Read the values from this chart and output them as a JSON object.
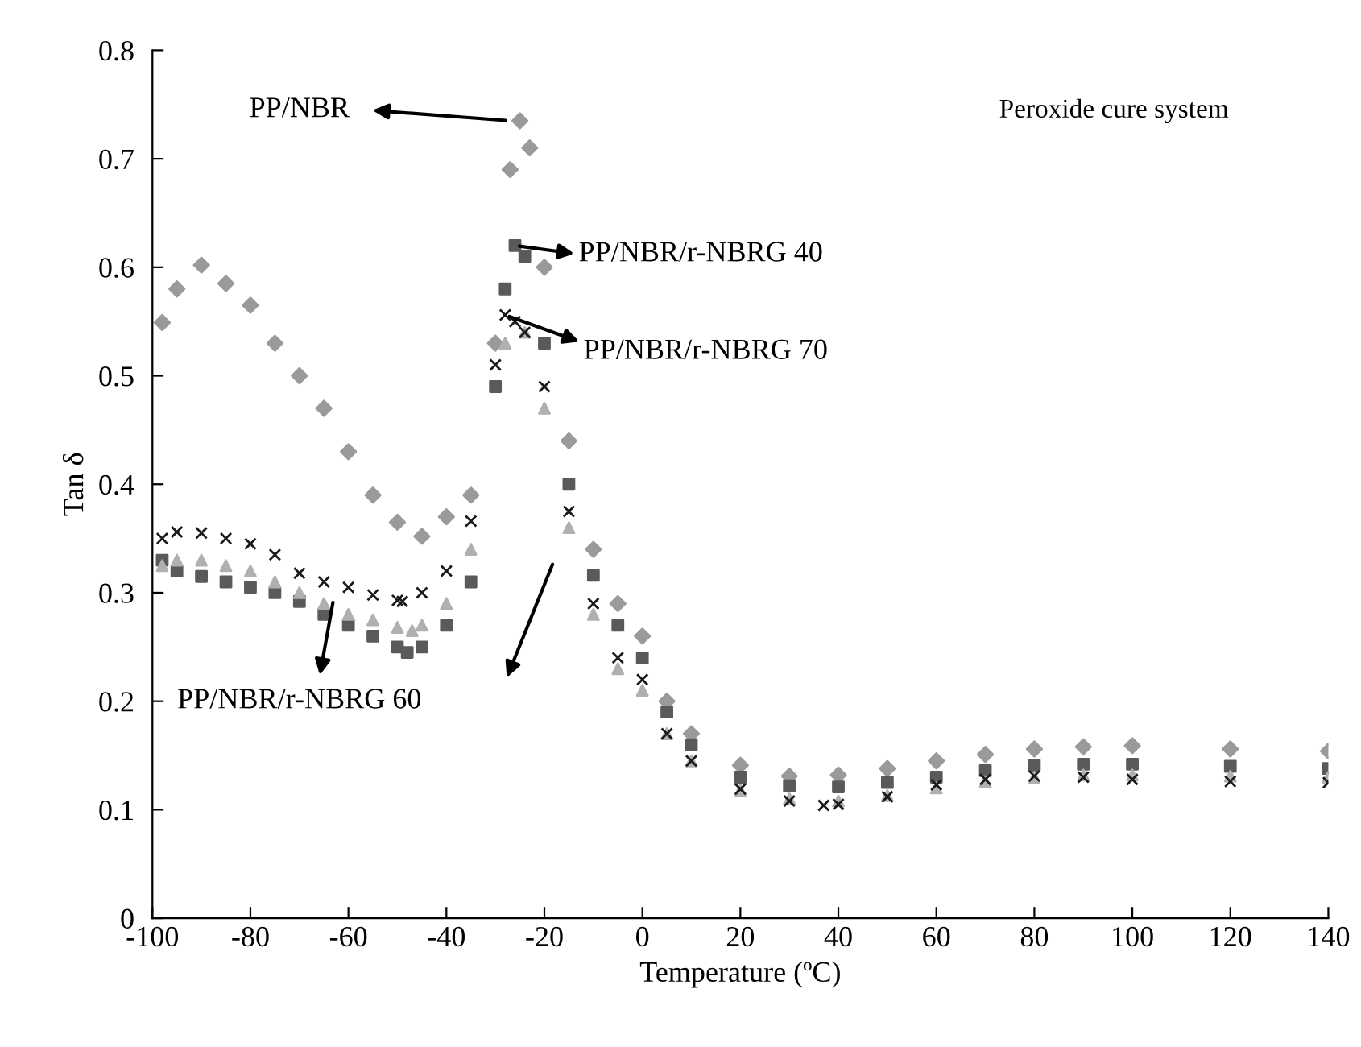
{
  "chart_data": {
    "type": "scatter",
    "xlabel": "Temperature (ºC)",
    "ylabel": "Tan δ",
    "xlim": [
      -100,
      140
    ],
    "xticks": [
      -100,
      -80,
      -60,
      -40,
      -20,
      0,
      20,
      40,
      60,
      80,
      100,
      120,
      140
    ],
    "ylim": [
      0,
      0.8
    ],
    "yticks": [
      0,
      0.1,
      0.2,
      0.3,
      0.4,
      0.5,
      0.6,
      0.7,
      0.8
    ],
    "grid": false,
    "legend": false,
    "annotations": [
      "Peroxide cure system"
    ],
    "series": [
      {
        "name": "PP/NBR",
        "color": "#9a9a9a",
        "marker": "diamond",
        "x": [
          -98,
          -95,
          -90,
          -85,
          -80,
          -75,
          -70,
          -65,
          -60,
          -55,
          -50,
          -45,
          -40,
          -35,
          -30,
          -27,
          -25,
          -23,
          -20,
          -15,
          -10,
          -5,
          0,
          5,
          10,
          20,
          30,
          40,
          50,
          60,
          70,
          80,
          90,
          100,
          120,
          140
        ],
        "values": [
          0.549,
          0.58,
          0.602,
          0.585,
          0.565,
          0.53,
          0.5,
          0.47,
          0.43,
          0.39,
          0.365,
          0.352,
          0.37,
          0.39,
          0.53,
          0.69,
          0.735,
          0.71,
          0.6,
          0.44,
          0.34,
          0.29,
          0.26,
          0.2,
          0.17,
          0.141,
          0.131,
          0.132,
          0.138,
          0.145,
          0.151,
          0.156,
          0.158,
          0.159,
          0.156,
          0.154
        ]
      },
      {
        "name": "PP/NBR/r-NBRG 40",
        "color": "#5a5a5a",
        "marker": "square",
        "x": [
          -98,
          -95,
          -90,
          -85,
          -80,
          -75,
          -70,
          -65,
          -60,
          -55,
          -50,
          -48,
          -45,
          -40,
          -35,
          -30,
          -28,
          -26,
          -24,
          -20,
          -15,
          -10,
          -5,
          0,
          5,
          10,
          20,
          30,
          40,
          50,
          60,
          70,
          80,
          90,
          100,
          120,
          140
        ],
        "values": [
          0.33,
          0.32,
          0.315,
          0.31,
          0.305,
          0.3,
          0.292,
          0.28,
          0.27,
          0.26,
          0.25,
          0.245,
          0.25,
          0.27,
          0.31,
          0.49,
          0.58,
          0.62,
          0.61,
          0.53,
          0.4,
          0.316,
          0.27,
          0.24,
          0.19,
          0.16,
          0.13,
          0.122,
          0.121,
          0.125,
          0.13,
          0.136,
          0.141,
          0.142,
          0.142,
          0.14,
          0.138
        ]
      },
      {
        "name": "PP/NBR/r-NBRG 60",
        "color": "#b0b0b0",
        "marker": "triangle",
        "x": [
          -98,
          -95,
          -90,
          -85,
          -80,
          -75,
          -70,
          -65,
          -60,
          -55,
          -50,
          -47,
          -45,
          -40,
          -35,
          -30,
          -28,
          -26,
          -24,
          -20,
          -15,
          -10,
          -5,
          0,
          5,
          10,
          20,
          30,
          40,
          50,
          60,
          70,
          80,
          90,
          100,
          120,
          140
        ],
        "values": [
          0.325,
          0.33,
          0.33,
          0.325,
          0.32,
          0.31,
          0.3,
          0.29,
          0.28,
          0.275,
          0.268,
          0.265,
          0.27,
          0.29,
          0.34,
          null,
          0.53,
          null,
          0.54,
          0.47,
          0.36,
          0.28,
          0.23,
          0.21,
          0.17,
          0.145,
          0.118,
          0.11,
          0.108,
          0.113,
          0.12,
          0.126,
          0.13,
          0.132,
          0.132,
          0.131,
          0.13
        ]
      },
      {
        "name": "PP/NBR/r-NBRG 70",
        "color": "#1a1a1a",
        "marker": "cross",
        "x": [
          -98,
          -95,
          -90,
          -85,
          -80,
          -75,
          -70,
          -65,
          -60,
          -55,
          -50,
          -49,
          -45,
          -40,
          -35,
          -30,
          -28,
          -26,
          -24,
          -20,
          -15,
          -10,
          -5,
          0,
          5,
          10,
          20,
          30,
          37,
          40,
          50,
          60,
          70,
          80,
          90,
          100,
          120,
          140
        ],
        "values": [
          0.35,
          0.356,
          0.355,
          0.35,
          0.345,
          0.335,
          0.318,
          0.31,
          0.305,
          0.298,
          0.293,
          0.292,
          0.3,
          0.32,
          0.366,
          0.51,
          0.556,
          0.55,
          0.54,
          0.49,
          0.375,
          0.29,
          0.24,
          0.22,
          0.17,
          0.145,
          0.119,
          0.108,
          0.104,
          0.105,
          0.112,
          0.123,
          0.128,
          0.131,
          0.13,
          0.128,
          0.126,
          0.125
        ]
      }
    ]
  }
}
